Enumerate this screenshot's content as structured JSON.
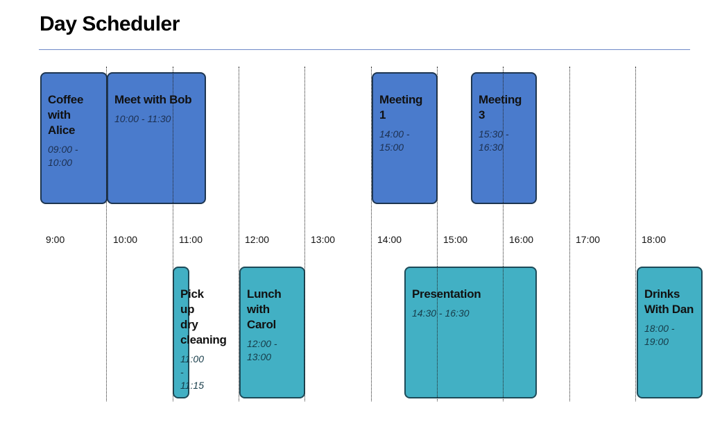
{
  "title": "Day Scheduler",
  "hours": [
    "9:00",
    "10:00",
    "11:00",
    "12:00",
    "13:00",
    "14:00",
    "15:00",
    "16:00",
    "17:00",
    "18:00"
  ],
  "events_top": [
    {
      "name": "Coffee with Alice",
      "time": "09:00 - 10:00"
    },
    {
      "name": "Meet with Bob",
      "time": "10:00 - 11:30"
    },
    {
      "name": "Meeting 1",
      "time": "14:00 - 15:00"
    },
    {
      "name": "Meeting 3",
      "time": "15:30 - 16:30"
    }
  ],
  "events_bottom": [
    {
      "name": "Pick up dry cleaning",
      "time": "11:00 - 11:15"
    },
    {
      "name": "Lunch with Carol",
      "time": "12:00 - 13:00"
    },
    {
      "name": "Presentation",
      "time": "14:30 - 16:30"
    },
    {
      "name": "Drinks With Dan",
      "time": "18:00 - 19:00"
    }
  ],
  "colors": {
    "top_lane": "#4a7bcc",
    "bottom_lane": "#42b0c4",
    "title_rule": "#6d88c8"
  }
}
